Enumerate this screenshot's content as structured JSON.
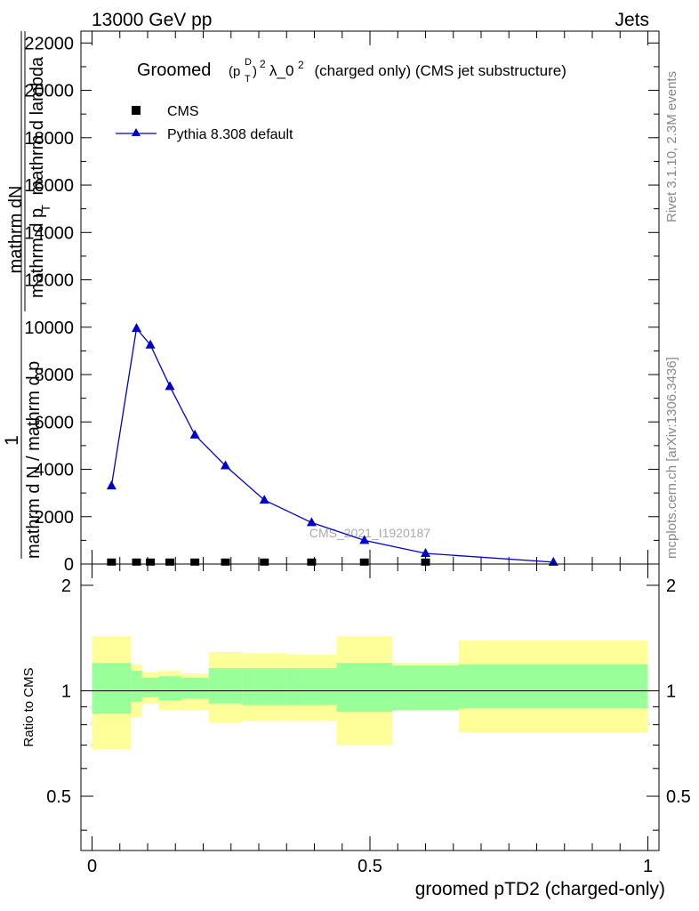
{
  "header": {
    "energy_label": "13000 GeV pp",
    "category_label": "Jets",
    "rivet_label": "Rivet 3.1.10,  2.3M events",
    "mcplots_label": "mcplots.cern.ch [arXiv:1306.3436]",
    "analysis_label": "CMS_2021_I1920187"
  },
  "chart_data": [
    {
      "type": "scatter",
      "title": "Groomed (p_T^D)^2 λ_0^2  (charged only) (CMS jet substructure)",
      "title_parts": {
        "word": "Groomed",
        "p": "(p",
        "sub": "T",
        "sup_d": "D",
        "close": ")",
        "sup2": "2",
        "lambda": "λ_0",
        "sup3": "2",
        "rest": "  (charged only) (CMS jet substructure)"
      },
      "ylabel_parts": {
        "one": "1",
        "frac_left": "mathrm d N / mathrm d p",
        "frac_right_top": "mathrm dN",
        "frac_right_bottom": "mathrm d p",
        "frac_right_sub": "T",
        "frac_right_rest": " mathrm d lambda"
      },
      "ylim": [
        0,
        22500
      ],
      "xlim": [
        -0.02,
        1.02
      ],
      "y_ticks": [
        0,
        2000,
        4000,
        6000,
        8000,
        10000,
        12000,
        14000,
        16000,
        18000,
        20000,
        22000
      ],
      "y_tick_labels": [
        "0",
        "2000",
        "4000",
        "6000",
        "8000",
        "10000",
        "12000",
        "14000",
        "16000",
        "18000",
        "20000",
        "22000"
      ],
      "legend_position": "top-left",
      "series": [
        {
          "name": "CMS",
          "marker": "square",
          "color": "#000000",
          "x": [
            0.035,
            0.08,
            0.105,
            0.14,
            0.185,
            0.24,
            0.31,
            0.395,
            0.49,
            0.6
          ],
          "y": [
            8,
            8,
            8,
            8,
            8,
            8,
            8,
            8,
            8,
            8
          ]
        },
        {
          "name": "Pythia 8.308 default",
          "marker": "triangle",
          "color": "#0000cc",
          "x": [
            0.035,
            0.08,
            0.105,
            0.14,
            0.185,
            0.24,
            0.31,
            0.395,
            0.49,
            0.6,
            0.83
          ],
          "y": [
            3300,
            9950,
            9250,
            7500,
            5450,
            4150,
            2700,
            1750,
            1000,
            450,
            80
          ]
        }
      ]
    },
    {
      "type": "area",
      "ylabel": "Ratio to CMS",
      "xlabel": "groomed pTD2 (charged-only)",
      "ylim": [
        0.35,
        2.3
      ],
      "xlim": [
        -0.02,
        1.02
      ],
      "y_ticks": [
        0.5,
        1,
        2
      ],
      "y_tick_labels": [
        "0.5",
        "1",
        "2"
      ],
      "x_ticks": [
        0,
        0.5,
        1
      ],
      "x_tick_labels": [
        "0",
        "0.5",
        "1"
      ],
      "reference_line": 1,
      "bands": {
        "edges": [
          0.0,
          0.07,
          0.09,
          0.12,
          0.16,
          0.21,
          0.27,
          0.35,
          0.44,
          0.54,
          0.66,
          1.0
        ],
        "green_colour": "#99ff99",
        "yellow_colour": "#ffff99",
        "green_low": [
          0.86,
          0.93,
          0.96,
          0.94,
          0.95,
          0.92,
          0.91,
          0.91,
          0.87,
          0.88,
          0.89
        ],
        "green_high": [
          1.2,
          1.14,
          1.09,
          1.1,
          1.09,
          1.16,
          1.16,
          1.16,
          1.2,
          1.18,
          1.19
        ],
        "yellow_low": [
          0.68,
          0.84,
          0.92,
          0.88,
          0.88,
          0.81,
          0.82,
          0.82,
          0.7,
          0.88,
          0.76
        ],
        "yellow_high": [
          1.43,
          1.19,
          1.13,
          1.14,
          1.12,
          1.29,
          1.28,
          1.27,
          1.43,
          1.2,
          1.39
        ]
      }
    }
  ]
}
